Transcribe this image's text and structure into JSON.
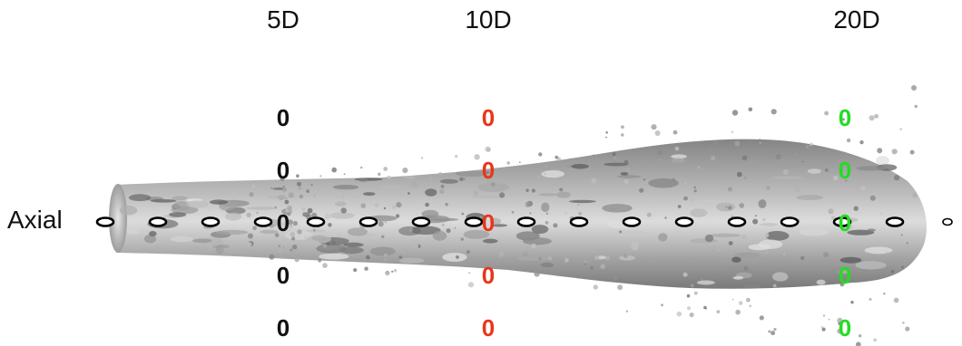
{
  "column_labels": {
    "d5": "5D",
    "d10": "10D",
    "d20": "20D"
  },
  "axial_label": "Axial",
  "probe_glyph": "0",
  "colors": {
    "station_5d": "#111111",
    "station_10d": "#e8361a",
    "station_20d": "#22dd22",
    "jet_surface": "#8c8c8c",
    "axial_marker": "#000000"
  },
  "probes": {
    "d5": [
      "0",
      "0",
      "0",
      "0",
      "0"
    ],
    "d10": [
      "0",
      "0",
      "0",
      "0",
      "0"
    ],
    "d20": [
      "0",
      "0",
      "0",
      "0",
      "0"
    ]
  },
  "axial_marker_count": 17
}
